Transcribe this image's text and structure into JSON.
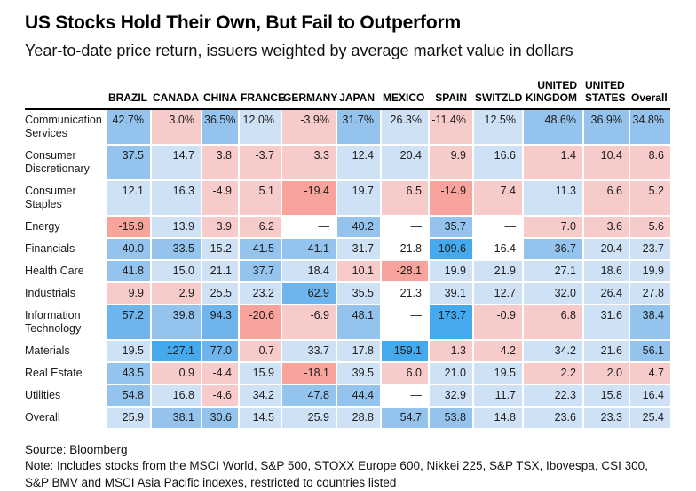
{
  "page": {
    "title": "US Stocks Hold Their Own, But Fail to Outperform",
    "subtitle": "Year-to-date price return, issuers weighted by average market value in dollars",
    "source": "Source: Bloomberg",
    "note": "Note: Includes stocks from the MSCI World, S&P 500, STOXX Europe 600, Nikkei 225, S&P TSX, Ibovespa, CSI 300, S&P BMV and MSCI Asia Pacific indexes, restricted to countries listed"
  },
  "colors": {
    "b1": "#cfe1f4",
    "b2": "#94c4ee",
    "b3": "#6fb5ed",
    "b4": "#45a9ee",
    "p1": "#f7cbc9",
    "p2": "#f9a39d",
    "w": "#ffffff"
  },
  "chart_data": {
    "type": "heatmap",
    "title": "US Stocks Hold Their Own, But Fail to Outperform",
    "subtitle": "Year-to-date price return, issuers weighted by average market value in dollars",
    "columns": [
      "BRAZIL",
      "CANADA",
      "CHINA",
      "FRANCE",
      "GERMANY",
      "JAPAN",
      "MEXICO",
      "SPAIN",
      "SWITZLD",
      "UNITED KINGDOM",
      "UNITED STATES",
      "Overall"
    ],
    "missing_marker": "—",
    "rows": [
      {
        "label": "Communication Services",
        "values": [
          "42.7%",
          "3.0%",
          "36.5%",
          "12.0%",
          "-3.9%",
          "31.7%",
          "26.3%",
          "-11.4%",
          "12.5%",
          "48.6%",
          "36.9%",
          "34.8%"
        ],
        "levels": [
          "b2",
          "p1",
          "b2",
          "b1",
          "p1",
          "b2",
          "b1",
          "p1",
          "b1",
          "b2",
          "b2",
          "b2"
        ]
      },
      {
        "label": "Consumer Discretionary",
        "values": [
          "37.5",
          "14.7",
          "3.8",
          "-3.7",
          "3.3",
          "12.4",
          "20.4",
          "9.9",
          "16.6",
          "1.4",
          "10.4",
          "8.6"
        ],
        "levels": [
          "b2",
          "b1",
          "p1",
          "p1",
          "p1",
          "b1",
          "b1",
          "p1",
          "b1",
          "p1",
          "p1",
          "p1"
        ]
      },
      {
        "label": "Consumer Staples",
        "values": [
          "12.1",
          "16.3",
          "-4.9",
          "5.1",
          "-19.4",
          "19.7",
          "6.5",
          "-14.9",
          "7.4",
          "11.3",
          "6.6",
          "5.2"
        ],
        "levels": [
          "b1",
          "b1",
          "p1",
          "p1",
          "p2",
          "b1",
          "p1",
          "p2",
          "p1",
          "b1",
          "p1",
          "p1"
        ]
      },
      {
        "label": "Energy",
        "values": [
          "-15.9",
          "13.9",
          "3.9",
          "6.2",
          "—",
          "40.2",
          "—",
          "35.7",
          "—",
          "7.0",
          "3.6",
          "5.6"
        ],
        "levels": [
          "p2",
          "b1",
          "p1",
          "p1",
          "w",
          "b2",
          "w",
          "b2",
          "w",
          "p1",
          "p1",
          "p1"
        ]
      },
      {
        "label": "Financials",
        "values": [
          "40.0",
          "33.5",
          "15.2",
          "41.5",
          "41.1",
          "31.7",
          "21.8",
          "109.6",
          "16.4",
          "36.7",
          "20.4",
          "23.7"
        ],
        "levels": [
          "b2",
          "b2",
          "b1",
          "b2",
          "b2",
          "b1",
          "w",
          "b4",
          "w",
          "b2",
          "b1",
          "b1"
        ]
      },
      {
        "label": "Health Care",
        "values": [
          "41.8",
          "15.0",
          "21.1",
          "37.7",
          "18.4",
          "10.1",
          "-28.1",
          "19.9",
          "21.9",
          "27.1",
          "18.6",
          "19.9"
        ],
        "levels": [
          "b2",
          "b1",
          "b1",
          "b2",
          "b1",
          "p1",
          "p2",
          "b1",
          "b1",
          "b1",
          "b1",
          "b1"
        ]
      },
      {
        "label": "Industrials",
        "values": [
          "9.9",
          "2.9",
          "25.5",
          "23.2",
          "62.9",
          "35.5",
          "21.3",
          "39.1",
          "12.7",
          "32.0",
          "26.4",
          "27.8"
        ],
        "levels": [
          "p1",
          "p1",
          "b1",
          "b1",
          "b3",
          "b1",
          "w",
          "b1",
          "b1",
          "b1",
          "b1",
          "b1"
        ]
      },
      {
        "label": "Information Technology",
        "values": [
          "57.2",
          "39.8",
          "94.3",
          "-20.6",
          "-6.9",
          "48.1",
          "—",
          "173.7",
          "-0.9",
          "6.8",
          "31.6",
          "38.4"
        ],
        "levels": [
          "b3",
          "b2",
          "b3",
          "p2",
          "p1",
          "b2",
          "w",
          "b4",
          "p1",
          "p1",
          "b1",
          "b2"
        ]
      },
      {
        "label": "Materials",
        "values": [
          "19.5",
          "127.1",
          "77.0",
          "0.7",
          "33.7",
          "17.8",
          "159.1",
          "1.3",
          "4.2",
          "34.2",
          "21.6",
          "56.1"
        ],
        "levels": [
          "b1",
          "b4",
          "b3",
          "p1",
          "b1",
          "b1",
          "b4",
          "p1",
          "p1",
          "b1",
          "b1",
          "b2"
        ]
      },
      {
        "label": "Real Estate",
        "values": [
          "43.5",
          "0.9",
          "-4.4",
          "15.9",
          "-18.1",
          "39.5",
          "6.0",
          "21.0",
          "19.5",
          "2.2",
          "2.0",
          "4.7"
        ],
        "levels": [
          "b2",
          "p1",
          "p1",
          "b1",
          "p2",
          "b1",
          "p1",
          "b1",
          "b1",
          "p1",
          "p1",
          "p1"
        ]
      },
      {
        "label": "Utilities",
        "values": [
          "54.8",
          "16.8",
          "-4.6",
          "34.2",
          "47.8",
          "44.4",
          "—",
          "32.9",
          "11.7",
          "22.3",
          "15.8",
          "16.4"
        ],
        "levels": [
          "b2",
          "b1",
          "p1",
          "b1",
          "b2",
          "b2",
          "w",
          "b1",
          "b1",
          "b1",
          "b1",
          "b1"
        ]
      },
      {
        "label": "Overall",
        "values": [
          "25.9",
          "38.1",
          "30.6",
          "14.5",
          "25.9",
          "28.8",
          "54.7",
          "53.8",
          "14.8",
          "23.6",
          "23.3",
          "25.4"
        ],
        "levels": [
          "b1",
          "b2",
          "b2",
          "b1",
          "b1",
          "b1",
          "b2",
          "b2",
          "b1",
          "b1",
          "b1",
          "b1"
        ]
      }
    ]
  }
}
